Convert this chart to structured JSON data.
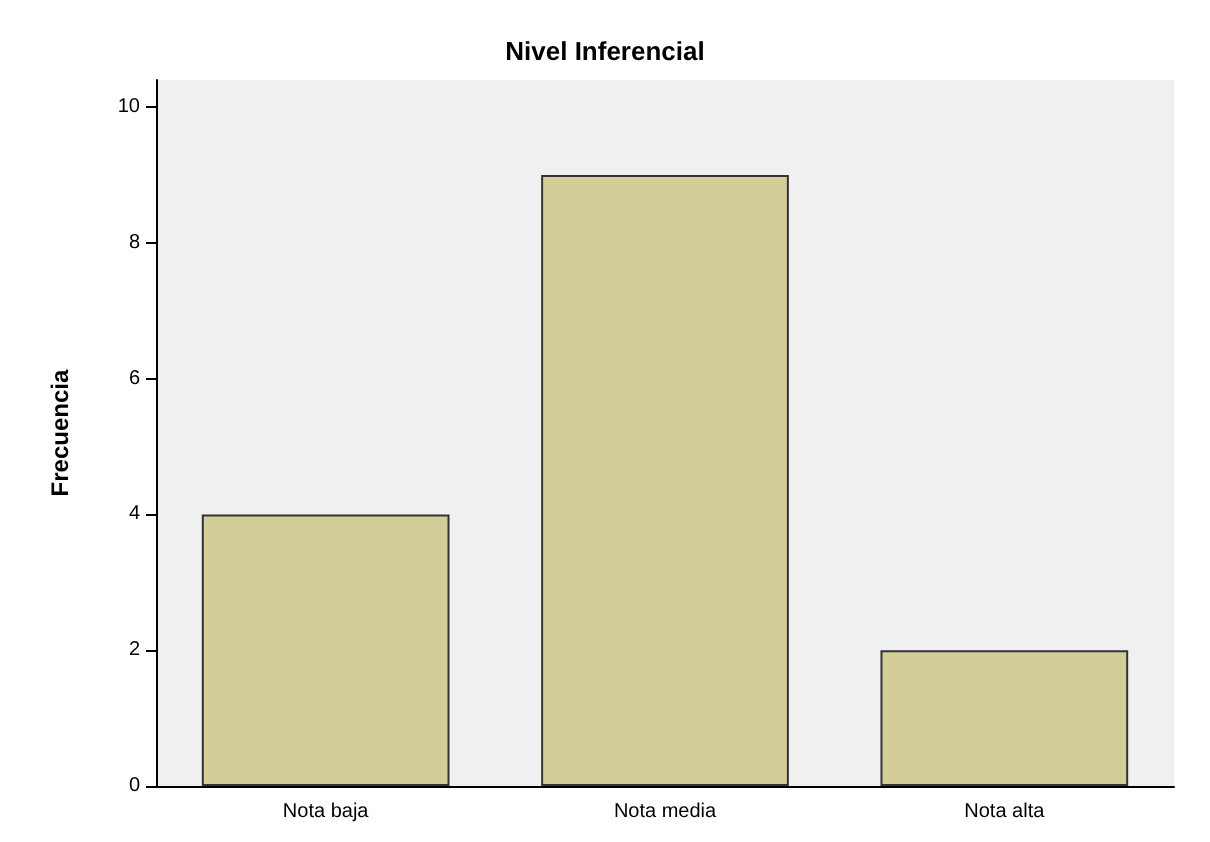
{
  "chart_data": {
    "type": "bar",
    "title": "Nivel Inferencial",
    "ylabel": "Frecuencia",
    "categories": [
      "Nota baja",
      "Nota media",
      "Nota alta"
    ],
    "values": [
      4,
      9,
      2
    ],
    "color": "#d3ce97",
    "ylim": [
      0,
      10.4
    ],
    "yticks": [
      0,
      2,
      4,
      6,
      8,
      10
    ]
  }
}
